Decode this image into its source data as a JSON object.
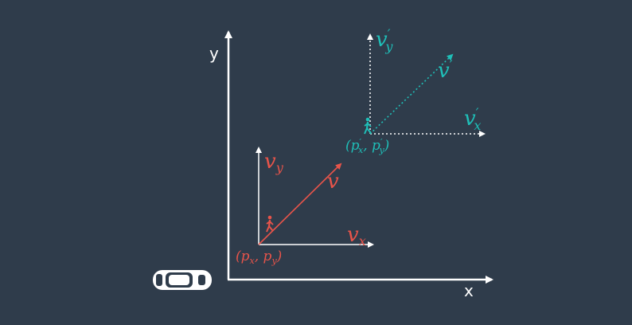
{
  "axes": {
    "x_label": "x",
    "y_label": "y"
  },
  "pedestrian_now": {
    "position_label": "(p",
    "position_sub_x": "x",
    "position_sep": ", p",
    "position_sub_y": "y",
    "position_close": ")",
    "vx_symbol": "v",
    "vx_sub": "x",
    "vy_symbol": "v",
    "vy_sub": "y",
    "v_symbol": "v",
    "color": "#e8544a"
  },
  "pedestrian_next": {
    "position_label": "(p",
    "position_prime": "′",
    "position_sub_x": "x",
    "position_sep": ", p",
    "position_sub_y": "y",
    "position_close": ")",
    "vx_symbol": "v",
    "vx_prime": "′",
    "vx_sub": "x",
    "vy_symbol": "v",
    "vy_prime": "′",
    "vy_sub": "y",
    "v_symbol": "v",
    "v_prime": "′",
    "color": "#1fbfb8"
  },
  "colors": {
    "background": "#2f3c4b",
    "axis": "#ffffff",
    "car": "#ffffff"
  },
  "icons": {
    "car": "car-icon",
    "pedestrian": "pedestrian-icon"
  }
}
